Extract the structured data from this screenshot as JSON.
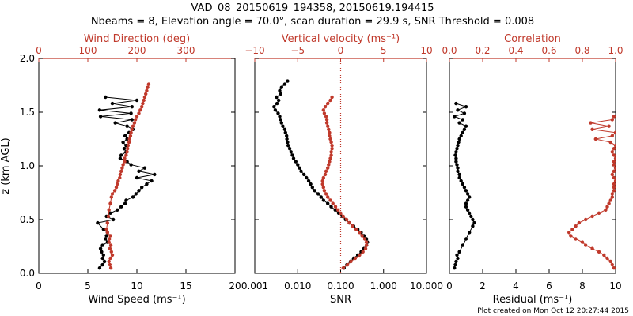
{
  "title": {
    "line1": "VAD_08_20150619_194358, 20150619.194415",
    "line2": "Nbeams = 8, Elevation angle = 70.0°, scan duration = 29.9 s, SNR Threshold = 0.008"
  },
  "footer": "Plot created on Mon Oct 12 20:27:44 2015",
  "colors": {
    "black": "#000000",
    "red": "#c0392b"
  },
  "chart_data": [
    {
      "type": "line",
      "ylabel": "z (km AGL)",
      "ylim": [
        0.0,
        2.0
      ],
      "yticks": [
        "0.0",
        "0.5",
        "1.0",
        "1.5",
        "2.0"
      ],
      "bottom_axis": {
        "label": "Wind Speed (ms⁻¹)",
        "lim": [
          0,
          20
        ],
        "ticks": [
          "0",
          "5",
          "10",
          "15",
          "20"
        ]
      },
      "top_axis": {
        "label": "Wind Direction (deg)",
        "lim": [
          0,
          400
        ],
        "ticks": [
          "0",
          "100",
          "200",
          "300"
        ]
      },
      "series": [
        {
          "color": "#000000",
          "axis": "bottom",
          "x": [
            6.2,
            6.5,
            6.7,
            6.5,
            6.6,
            6.4,
            6.3,
            6.5,
            7.0,
            6.8,
            6.9,
            7.0,
            6.6,
            6.0,
            7.6,
            6.9,
            7.3,
            8.0,
            8.4,
            8.8,
            8.9,
            9.6,
            9.9,
            10.2,
            10.5,
            11.0,
            11.5,
            10.0,
            11.8,
            10.2,
            10.8,
            9.4,
            9.0,
            8.3,
            8.4,
            8.9,
            8.7,
            8.9,
            8.6,
            9.0,
            8.8,
            9.2,
            9.6,
            9.0,
            7.8,
            9.5,
            6.3,
            9.4,
            6.2,
            9.5,
            7.5,
            10.0,
            6.8
          ],
          "y": [
            0.05,
            0.08,
            0.11,
            0.14,
            0.17,
            0.2,
            0.23,
            0.26,
            0.29,
            0.32,
            0.35,
            0.38,
            0.41,
            0.47,
            0.5,
            0.53,
            0.56,
            0.59,
            0.62,
            0.65,
            0.68,
            0.71,
            0.74,
            0.77,
            0.8,
            0.83,
            0.86,
            0.89,
            0.92,
            0.95,
            0.98,
            1.01,
            1.04,
            1.07,
            1.1,
            1.13,
            1.16,
            1.19,
            1.22,
            1.25,
            1.28,
            1.31,
            1.34,
            1.37,
            1.4,
            1.43,
            1.46,
            1.49,
            1.52,
            1.55,
            1.58,
            1.61,
            1.64
          ]
        },
        {
          "color": "#c0392b",
          "axis": "top",
          "x": [
            147,
            145,
            143,
            146,
            150,
            148,
            145,
            147,
            143,
            144,
            146,
            140,
            138,
            140,
            142,
            143,
            146,
            148,
            150,
            155,
            158,
            160,
            162,
            165,
            166,
            168,
            170,
            172,
            175,
            175,
            178,
            180,
            181,
            182,
            184,
            185,
            187,
            188,
            190,
            192,
            195,
            197,
            200,
            204,
            207,
            210,
            212,
            214,
            216,
            218,
            220,
            222,
            224
          ],
          "y": [
            0.05,
            0.08,
            0.11,
            0.14,
            0.17,
            0.2,
            0.23,
            0.26,
            0.29,
            0.32,
            0.35,
            0.38,
            0.41,
            0.47,
            0.53,
            0.59,
            0.65,
            0.71,
            0.74,
            0.77,
            0.8,
            0.83,
            0.86,
            0.89,
            0.92,
            0.95,
            0.98,
            1.01,
            1.04,
            1.07,
            1.1,
            1.13,
            1.16,
            1.19,
            1.22,
            1.25,
            1.28,
            1.31,
            1.34,
            1.37,
            1.4,
            1.43,
            1.46,
            1.49,
            1.52,
            1.55,
            1.58,
            1.61,
            1.64,
            1.67,
            1.7,
            1.73,
            1.76
          ]
        }
      ]
    },
    {
      "type": "line",
      "ylim": [
        0.0,
        2.0
      ],
      "bottom_axis": {
        "label": "SNR",
        "scale": "log",
        "lim": [
          0.001,
          10
        ],
        "ticks": [
          "0.001",
          "0.010",
          "0.100",
          "1.000",
          "10.000"
        ]
      },
      "top_axis": {
        "label": "Vertical velocity (ms⁻¹)",
        "lim": [
          -10,
          10
        ],
        "ticks": [
          "−10",
          "−5",
          "0",
          "5",
          "10"
        ]
      },
      "reference_line": {
        "axis": "top",
        "x": 0,
        "color": "#c0392b",
        "style": "dotted"
      },
      "series": [
        {
          "color": "#000000",
          "axis": "bottom",
          "x": [
            0.12,
            0.14,
            0.17,
            0.2,
            0.25,
            0.3,
            0.35,
            0.4,
            0.42,
            0.4,
            0.35,
            0.3,
            0.25,
            0.2,
            0.16,
            0.13,
            0.11,
            0.09,
            0.075,
            0.06,
            0.05,
            0.04,
            0.035,
            0.03,
            0.025,
            0.022,
            0.02,
            0.018,
            0.016,
            0.014,
            0.012,
            0.011,
            0.01,
            0.009,
            0.008,
            0.0075,
            0.007,
            0.0065,
            0.006,
            0.0058,
            0.0056,
            0.0055,
            0.0052,
            0.005,
            0.0045,
            0.0042,
            0.004,
            0.0038,
            0.0035,
            0.003,
            0.0028,
            0.0033,
            0.0036,
            0.0032,
            0.004,
            0.0038,
            0.0042,
            0.005,
            0.0058
          ],
          "y": [
            0.05,
            0.08,
            0.11,
            0.14,
            0.17,
            0.2,
            0.23,
            0.26,
            0.29,
            0.32,
            0.35,
            0.38,
            0.41,
            0.44,
            0.47,
            0.5,
            0.53,
            0.56,
            0.59,
            0.62,
            0.65,
            0.68,
            0.71,
            0.74,
            0.77,
            0.8,
            0.83,
            0.86,
            0.89,
            0.92,
            0.95,
            0.98,
            1.01,
            1.04,
            1.07,
            1.1,
            1.13,
            1.16,
            1.19,
            1.22,
            1.25,
            1.28,
            1.31,
            1.34,
            1.37,
            1.4,
            1.43,
            1.46,
            1.49,
            1.52,
            1.55,
            1.58,
            1.61,
            1.64,
            1.67,
            1.7,
            1.73,
            1.76,
            1.79
          ]
        },
        {
          "color": "#c0392b",
          "axis": "top",
          "x": [
            0.3,
            0.8,
            1.2,
            1.7,
            2.2,
            2.6,
            2.9,
            3.0,
            3.0,
            2.8,
            2.5,
            2.2,
            1.8,
            1.4,
            1.0,
            0.7,
            0.3,
            0.0,
            -0.3,
            -0.6,
            -0.9,
            -1.2,
            -1.5,
            -1.7,
            -1.9,
            -2.0,
            -2.1,
            -2.1,
            -2.0,
            -1.8,
            -1.7,
            -1.5,
            -1.4,
            -1.3,
            -1.2,
            -1.1,
            -1.1,
            -1.0,
            -1.0,
            -1.1,
            -1.2,
            -1.3,
            -1.3,
            -1.4,
            -1.5,
            -1.6,
            -1.6,
            -1.7,
            -1.9,
            -2.0,
            -1.8,
            -1.5,
            -1.2,
            -1.0
          ],
          "y": [
            0.05,
            0.08,
            0.11,
            0.14,
            0.17,
            0.2,
            0.23,
            0.26,
            0.29,
            0.32,
            0.35,
            0.38,
            0.41,
            0.44,
            0.47,
            0.5,
            0.53,
            0.56,
            0.59,
            0.62,
            0.65,
            0.68,
            0.71,
            0.74,
            0.77,
            0.8,
            0.83,
            0.86,
            0.89,
            0.92,
            0.95,
            0.98,
            1.01,
            1.04,
            1.07,
            1.1,
            1.13,
            1.16,
            1.19,
            1.22,
            1.25,
            1.28,
            1.31,
            1.34,
            1.37,
            1.4,
            1.43,
            1.46,
            1.49,
            1.52,
            1.55,
            1.58,
            1.61,
            1.64
          ]
        }
      ]
    },
    {
      "type": "line",
      "ylim": [
        0.0,
        2.0
      ],
      "bottom_axis": {
        "label": "Residual (ms⁻¹)",
        "lim": [
          0,
          10
        ],
        "ticks": [
          "0",
          "2",
          "4",
          "6",
          "8",
          "10"
        ]
      },
      "top_axis": {
        "label": "Correlation",
        "lim": [
          0.0,
          1.0
        ],
        "ticks": [
          "0.0",
          "0.2",
          "0.4",
          "0.6",
          "0.8",
          "1.0"
        ]
      },
      "series": [
        {
          "color": "#000000",
          "axis": "bottom",
          "x": [
            0.3,
            0.35,
            0.4,
            0.5,
            0.45,
            0.6,
            0.8,
            1.0,
            1.2,
            1.4,
            1.5,
            1.4,
            1.3,
            1.2,
            1.1,
            1.0,
            1.0,
            1.1,
            1.2,
            1.1,
            1.0,
            0.9,
            0.8,
            0.7,
            0.6,
            0.6,
            0.5,
            0.5,
            0.45,
            0.4,
            0.4,
            0.35,
            0.4,
            0.45,
            0.5,
            0.55,
            0.6,
            0.7,
            0.8,
            0.9,
            1.0,
            0.6,
            0.8,
            0.3,
            0.9,
            0.5,
            1.0,
            0.4
          ],
          "y": [
            0.05,
            0.08,
            0.11,
            0.14,
            0.17,
            0.2,
            0.26,
            0.32,
            0.38,
            0.44,
            0.47,
            0.5,
            0.53,
            0.56,
            0.59,
            0.62,
            0.65,
            0.68,
            0.71,
            0.74,
            0.77,
            0.8,
            0.83,
            0.86,
            0.89,
            0.92,
            0.95,
            0.98,
            1.01,
            1.04,
            1.07,
            1.1,
            1.13,
            1.16,
            1.19,
            1.22,
            1.25,
            1.28,
            1.31,
            1.34,
            1.37,
            1.4,
            1.43,
            1.46,
            1.49,
            1.52,
            1.55,
            1.58
          ]
        },
        {
          "color": "#c0392b",
          "axis": "top",
          "x": [
            0.99,
            0.98,
            0.97,
            0.95,
            0.93,
            0.9,
            0.86,
            0.82,
            0.8,
            0.76,
            0.73,
            0.72,
            0.74,
            0.76,
            0.78,
            0.82,
            0.86,
            0.9,
            0.94,
            0.95,
            0.96,
            0.97,
            0.98,
            0.98,
            0.99,
            0.99,
            0.99,
            1.0,
            0.99,
            0.98,
            0.99,
            1.0,
            0.99,
            0.99,
            1.0,
            0.99,
            0.98,
            0.99,
            1.0,
            0.97,
            0.88,
            0.98,
            1.0,
            0.86,
            0.96,
            0.85,
            0.98,
            0.99
          ],
          "y": [
            0.05,
            0.08,
            0.11,
            0.14,
            0.17,
            0.2,
            0.23,
            0.26,
            0.29,
            0.32,
            0.35,
            0.38,
            0.41,
            0.44,
            0.47,
            0.5,
            0.53,
            0.56,
            0.59,
            0.62,
            0.65,
            0.68,
            0.71,
            0.74,
            0.77,
            0.8,
            0.83,
            0.86,
            0.89,
            0.92,
            0.95,
            0.98,
            1.01,
            1.04,
            1.07,
            1.1,
            1.13,
            1.16,
            1.19,
            1.22,
            1.25,
            1.28,
            1.31,
            1.34,
            1.37,
            1.4,
            1.43,
            1.46
          ]
        }
      ]
    }
  ]
}
